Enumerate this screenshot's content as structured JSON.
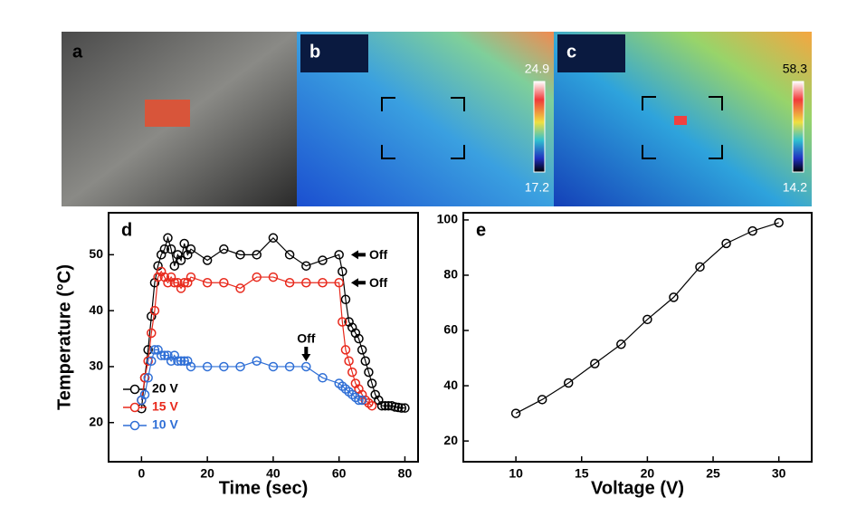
{
  "photo_panels": [
    {
      "label": "a"
    },
    {
      "label": "b",
      "scale_max": "24.9",
      "scale_min": "17.2"
    },
    {
      "label": "c",
      "scale_max": "58.3",
      "scale_min": "14.2"
    }
  ],
  "chart_data": [
    {
      "type": "line",
      "panel_label": "d",
      "x_label": "Time (sec)",
      "y_label": "Temperature (°C)",
      "xlim": [
        -10,
        84
      ],
      "ylim": [
        13,
        57.5
      ],
      "xticks": [
        0,
        20,
        40,
        60,
        80
      ],
      "yticks": [
        20,
        30,
        40,
        50
      ],
      "legend": "lower left",
      "annotations": [
        "Off",
        "Off",
        "Off"
      ],
      "series": [
        {
          "name": "20 V",
          "color": "#000000",
          "x": [
            0,
            1,
            2,
            3,
            4,
            5,
            6,
            7,
            8,
            9,
            10,
            11,
            12,
            13,
            14,
            15,
            20,
            25,
            30,
            35,
            40,
            45,
            50,
            55,
            60,
            61,
            62,
            63,
            64,
            65,
            66,
            67,
            68,
            69,
            70,
            71,
            72,
            73,
            74,
            75,
            76,
            77,
            78,
            79,
            80
          ],
          "values": [
            22.5,
            28,
            33,
            39,
            45,
            48,
            50,
            51,
            53,
            51,
            48,
            50,
            49,
            52,
            50,
            51,
            49,
            51,
            50,
            50,
            53,
            50,
            48,
            49,
            50,
            47,
            42,
            38,
            37,
            36,
            35,
            33,
            31,
            29,
            27,
            25,
            24,
            23,
            23,
            23,
            23,
            22.8,
            22.7,
            22.6,
            22.6
          ]
        },
        {
          "name": "15 V",
          "color": "#e8291c",
          "x": [
            0,
            1,
            2,
            3,
            4,
            5,
            6,
            7,
            8,
            9,
            10,
            11,
            12,
            13,
            14,
            15,
            20,
            25,
            30,
            35,
            40,
            45,
            50,
            55,
            60,
            61,
            62,
            63,
            64,
            65,
            66,
            67,
            68,
            69,
            70
          ],
          "values": [
            24,
            28,
            31,
            36,
            40,
            46,
            47,
            46,
            45,
            46,
            45,
            45,
            44,
            45,
            45,
            46,
            45,
            45,
            44,
            46,
            46,
            45,
            45,
            45,
            45,
            38,
            33,
            31,
            29,
            27,
            26,
            25,
            24,
            23.5,
            23
          ]
        },
        {
          "name": "10 V",
          "color": "#2f6fd6",
          "x": [
            0,
            1,
            2,
            3,
            4,
            5,
            6,
            7,
            8,
            9,
            10,
            11,
            12,
            13,
            14,
            15,
            20,
            25,
            30,
            35,
            40,
            45,
            50,
            55,
            60,
            61,
            62,
            63,
            64,
            65,
            66,
            67
          ],
          "values": [
            24,
            25,
            28,
            31,
            33,
            33,
            32,
            32,
            32,
            31,
            32,
            31,
            31,
            31,
            31,
            30,
            30,
            30,
            30,
            31,
            30,
            30,
            30,
            28,
            27,
            26.5,
            26,
            25.5,
            25,
            24.5,
            24,
            24
          ]
        }
      ]
    },
    {
      "type": "line",
      "panel_label": "e",
      "x_label": "Voltage (V)",
      "xlim": [
        6,
        32.5
      ],
      "ylim": [
        12.5,
        102.6
      ],
      "xticks": [
        10,
        15,
        20,
        25,
        30
      ],
      "yticks": [
        20,
        40,
        60,
        80,
        100
      ],
      "series": [
        {
          "color": "#000000",
          "x": [
            10,
            12,
            14,
            16,
            18,
            20,
            22,
            24,
            26,
            28,
            30
          ],
          "values": [
            30,
            35,
            41,
            48,
            55,
            64,
            72,
            83,
            91.5,
            96,
            99
          ]
        }
      ]
    }
  ]
}
